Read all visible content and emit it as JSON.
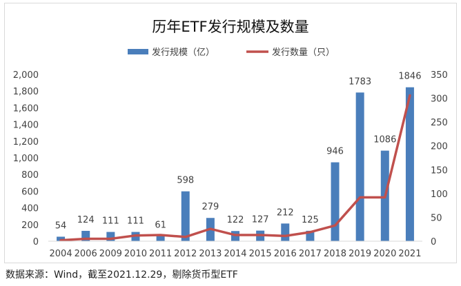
{
  "source_note": "数据来源：Wind，截至2021.12.29，剔除货币型ETF",
  "chart_data": {
    "type": "bar",
    "title": "历年ETF发行规模及数量",
    "categories": [
      "2004",
      "2006",
      "2009",
      "2010",
      "2011",
      "2012",
      "2013",
      "2014",
      "2015",
      "2016",
      "2017",
      "2018",
      "2019",
      "2020",
      "2021"
    ],
    "series": [
      {
        "name": "发行规模（亿）",
        "type": "bar",
        "axis": "left",
        "color": "#4a7ebb",
        "values": [
          54,
          124,
          111,
          111,
          61,
          598,
          279,
          122,
          127,
          212,
          125,
          946,
          1783,
          1086,
          1846
        ],
        "data_labels": [
          "54",
          "124",
          "111",
          "111",
          "61",
          "598",
          "279",
          "122",
          "127",
          "212",
          "125",
          "946",
          "1783",
          "1086",
          "1846"
        ]
      },
      {
        "name": "发行数量（只）",
        "type": "line",
        "axis": "right",
        "color": "#c0504d",
        "values": [
          2,
          5,
          5,
          12,
          13,
          9,
          26,
          13,
          13,
          11,
          19,
          33,
          92,
          92,
          306
        ]
      }
    ],
    "y_left": {
      "lim": [
        0,
        2000
      ],
      "ticks": [
        "0",
        "200",
        "400",
        "600",
        "800",
        "1,000",
        "1,200",
        "1,400",
        "1,600",
        "1,800",
        "2,000"
      ]
    },
    "y_right": {
      "lim": [
        0,
        350
      ],
      "ticks": [
        "0",
        "50",
        "100",
        "150",
        "200",
        "250",
        "300",
        "350"
      ]
    },
    "legend_position": "top",
    "grid": false
  }
}
